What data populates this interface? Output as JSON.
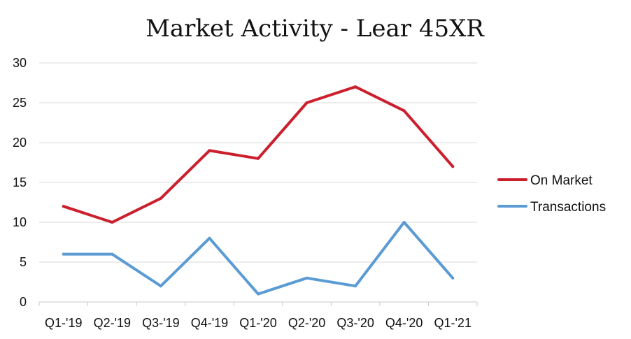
{
  "chart_data": {
    "type": "line",
    "title": "Market Activity - Lear 45XR",
    "categories": [
      "Q1-'19",
      "Q2-'19",
      "Q3-'19",
      "Q4-'19",
      "Q1-'20",
      "Q2-'20",
      "Q3-'20",
      "Q4-'20",
      "Q1-'21"
    ],
    "yticks": [
      "0",
      "5",
      "10",
      "15",
      "20",
      "25",
      "30"
    ],
    "ylim": [
      0,
      30
    ],
    "grid": true,
    "legend_position": "right",
    "series": [
      {
        "name": "On Market",
        "color": "#cc1f2d",
        "values": [
          12,
          10,
          13,
          19,
          18,
          25,
          27,
          24,
          17
        ]
      },
      {
        "name": "Transactions",
        "color": "#5b9bd5",
        "values": [
          6,
          6,
          2,
          8,
          1,
          3,
          2,
          10,
          3
        ]
      }
    ]
  }
}
